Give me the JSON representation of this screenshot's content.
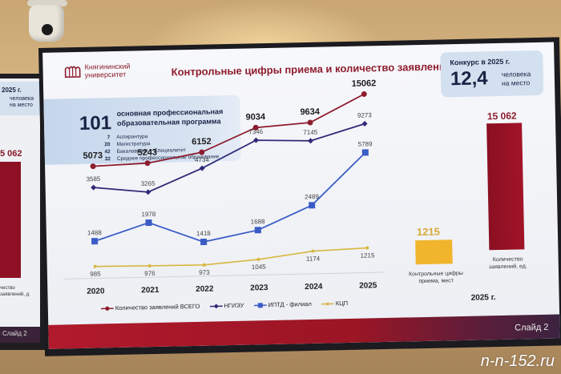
{
  "slide": {
    "logo_text_line1": "Княгининский",
    "logo_text_line2": "университет",
    "title": "Контрольные цифры приема и количество заявлений",
    "slide_number": "Слайд 2"
  },
  "program_box": {
    "count": "101",
    "title_line1": "основная профессиональная",
    "title_line2": "образовательная программа",
    "items": [
      {
        "n": "7",
        "label": "Аспирантура"
      },
      {
        "n": "20",
        "label": "Магистратура"
      },
      {
        "n": "42",
        "label": "Бакалавриат + Специалитет"
      },
      {
        "n": "32",
        "label": "Среднее профессиональное образование"
      }
    ]
  },
  "konkurs": {
    "title": "Конкурс в 2025 г.",
    "value": "12,4",
    "unit_line1": "человека",
    "unit_line2": "на место"
  },
  "bars_2025": {
    "kcp_value": "1215",
    "kcp_caption": "Контрольные цифры приема, мест",
    "applications_value": "15 062",
    "applications_caption": "Количество заявлений, ед.",
    "year_label": "2025 г."
  },
  "left_screen": {
    "title": "2025 г.",
    "unit_line1": "человека",
    "unit_line2": "на место",
    "value": "5 062",
    "caption": "чество заявлений, д.",
    "slide_number": "Слайд 2"
  },
  "watermark": "n-n-152.ru",
  "colors": {
    "total": "#8d1d2e",
    "ngieu": "#2e2a78",
    "iptd": "#3a5cc6",
    "kcp": "#d8b640",
    "accent": "#8d1d2e"
  },
  "chart_data": [
    {
      "type": "line",
      "title": "Контрольные цифры приема и количество заявлений",
      "categories": [
        "2020",
        "2021",
        "2022",
        "2023",
        "2024",
        "2025"
      ],
      "series": [
        {
          "name": "Количество заявлений ВСЕГО",
          "values": [
            5073,
            5243,
            6152,
            9034,
            9634,
            15062
          ]
        },
        {
          "name": "НГИЭУ",
          "values": [
            3585,
            3265,
            4734,
            7346,
            7145,
            9273
          ]
        },
        {
          "name": "ИПТД - филиал",
          "values": [
            1488,
            1978,
            1418,
            1688,
            2489,
            5789
          ]
        },
        {
          "name": "КЦП",
          "values": [
            985,
            976,
            973,
            1045,
            1174,
            1215
          ]
        }
      ],
      "xlabel": "",
      "ylabel": "",
      "grid": false,
      "legend_position": "bottom"
    },
    {
      "type": "bar",
      "title": "2025 г.",
      "categories": [
        "Контрольные цифры приема, мест",
        "Количество заявлений, ед."
      ],
      "values": [
        1215,
        15062
      ]
    }
  ],
  "legend": [
    {
      "label": "Количество заявлений ВСЕГО"
    },
    {
      "label": "НГИЭУ"
    },
    {
      "label": "ИПТД - филиал"
    },
    {
      "label": "КЦП"
    }
  ]
}
